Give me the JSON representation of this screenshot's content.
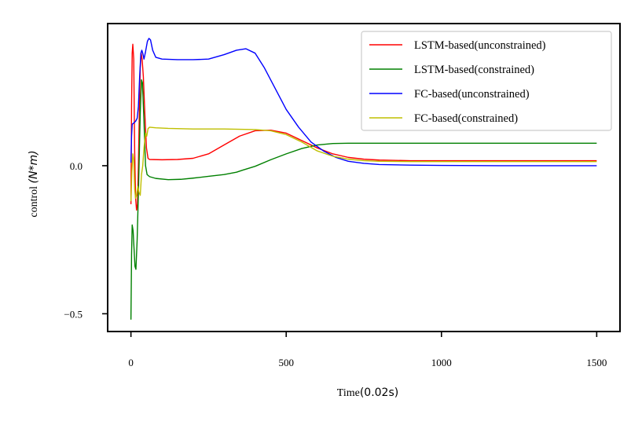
{
  "chart_data": {
    "type": "line",
    "xlabel_text": "Time",
    "xlabel_unit": "(0.02s)",
    "ylabel_text": "control ",
    "ylabel_unit": "(N*m)",
    "xlim": [
      -75,
      1575
    ],
    "ylim": [
      -0.56,
      0.48
    ],
    "xticks": [
      0,
      500,
      1000,
      1500
    ],
    "xtick_labels": [
      "0",
      "500",
      "1000",
      "1500"
    ],
    "yticks": [
      0.0,
      -0.5
    ],
    "ytick_labels": [
      "0.0",
      "−0.5"
    ],
    "grid": false,
    "legend_position": "top-right",
    "series": [
      {
        "name": "LSTM-based(unconstrained)",
        "color": "#ff0000",
        "points": [
          [
            0,
            -0.13
          ],
          [
            2,
            0.2
          ],
          [
            4,
            0.38
          ],
          [
            6,
            0.41
          ],
          [
            9,
            0.36
          ],
          [
            12,
            0.05
          ],
          [
            15,
            -0.11
          ],
          [
            18,
            -0.15
          ],
          [
            21,
            -0.13
          ],
          [
            24,
            0.0
          ],
          [
            27,
            0.18
          ],
          [
            30,
            0.33
          ],
          [
            33,
            0.38
          ],
          [
            36,
            0.36
          ],
          [
            40,
            0.3
          ],
          [
            45,
            0.17
          ],
          [
            50,
            0.06
          ],
          [
            55,
            0.025
          ],
          [
            60,
            0.021
          ],
          [
            100,
            0.02
          ],
          [
            150,
            0.021
          ],
          [
            200,
            0.025
          ],
          [
            250,
            0.04
          ],
          [
            300,
            0.07
          ],
          [
            350,
            0.1
          ],
          [
            400,
            0.118
          ],
          [
            450,
            0.12
          ],
          [
            500,
            0.11
          ],
          [
            550,
            0.085
          ],
          [
            600,
            0.06
          ],
          [
            650,
            0.04
          ],
          [
            700,
            0.028
          ],
          [
            750,
            0.022
          ],
          [
            800,
            0.019
          ],
          [
            900,
            0.017
          ],
          [
            1000,
            0.017
          ],
          [
            1200,
            0.017
          ],
          [
            1500,
            0.017
          ]
        ]
      },
      {
        "name": "LSTM-based(constrained)",
        "color": "#008000",
        "points": [
          [
            0,
            -0.52
          ],
          [
            2,
            -0.3
          ],
          [
            4,
            -0.2
          ],
          [
            7,
            -0.22
          ],
          [
            10,
            -0.28
          ],
          [
            13,
            -0.34
          ],
          [
            16,
            -0.35
          ],
          [
            20,
            -0.25
          ],
          [
            25,
            -0.05
          ],
          [
            30,
            0.18
          ],
          [
            34,
            0.29
          ],
          [
            37,
            0.28
          ],
          [
            42,
            0.15
          ],
          [
            47,
            0.0
          ],
          [
            52,
            -0.03
          ],
          [
            60,
            -0.037
          ],
          [
            80,
            -0.043
          ],
          [
            120,
            -0.047
          ],
          [
            160,
            -0.046
          ],
          [
            200,
            -0.042
          ],
          [
            250,
            -0.036
          ],
          [
            300,
            -0.03
          ],
          [
            340,
            -0.022
          ],
          [
            360,
            -0.015
          ],
          [
            400,
            -0.002
          ],
          [
            450,
            0.02
          ],
          [
            500,
            0.04
          ],
          [
            550,
            0.058
          ],
          [
            600,
            0.07
          ],
          [
            650,
            0.075
          ],
          [
            700,
            0.076
          ],
          [
            800,
            0.076
          ],
          [
            1000,
            0.076
          ],
          [
            1200,
            0.076
          ],
          [
            1500,
            0.076
          ]
        ]
      },
      {
        "name": "FC-based(unconstrained)",
        "color": "#0000ff",
        "points": [
          [
            0,
            0.01
          ],
          [
            2,
            0.1
          ],
          [
            4,
            0.14
          ],
          [
            10,
            0.145
          ],
          [
            15,
            0.15
          ],
          [
            20,
            0.16
          ],
          [
            24,
            0.2
          ],
          [
            28,
            0.3
          ],
          [
            32,
            0.38
          ],
          [
            35,
            0.39
          ],
          [
            38,
            0.38
          ],
          [
            42,
            0.36
          ],
          [
            47,
            0.385
          ],
          [
            53,
            0.42
          ],
          [
            58,
            0.43
          ],
          [
            63,
            0.425
          ],
          [
            70,
            0.39
          ],
          [
            80,
            0.366
          ],
          [
            100,
            0.36
          ],
          [
            150,
            0.358
          ],
          [
            200,
            0.358
          ],
          [
            250,
            0.36
          ],
          [
            300,
            0.375
          ],
          [
            340,
            0.39
          ],
          [
            370,
            0.395
          ],
          [
            400,
            0.38
          ],
          [
            430,
            0.33
          ],
          [
            460,
            0.27
          ],
          [
            500,
            0.19
          ],
          [
            540,
            0.13
          ],
          [
            580,
            0.08
          ],
          [
            620,
            0.05
          ],
          [
            660,
            0.028
          ],
          [
            700,
            0.015
          ],
          [
            750,
            0.008
          ],
          [
            800,
            0.004
          ],
          [
            900,
            0.002
          ],
          [
            1000,
            0.001
          ],
          [
            1200,
            0.0
          ],
          [
            1500,
            0.0
          ]
        ]
      },
      {
        "name": "FC-based(constrained)",
        "color": "#bfbf00",
        "points": [
          [
            0,
            -0.12
          ],
          [
            3,
            -0.02
          ],
          [
            6,
            0.04
          ],
          [
            9,
            0.02
          ],
          [
            12,
            -0.08
          ],
          [
            15,
            -0.11
          ],
          [
            18,
            -0.1
          ],
          [
            22,
            -0.07
          ],
          [
            26,
            -0.09
          ],
          [
            30,
            -0.1
          ],
          [
            34,
            -0.03
          ],
          [
            38,
            0.0
          ],
          [
            42,
            0.06
          ],
          [
            47,
            0.11
          ],
          [
            51,
            0.1
          ],
          [
            55,
            0.125
          ],
          [
            60,
            0.13
          ],
          [
            80,
            0.128
          ],
          [
            120,
            0.126
          ],
          [
            200,
            0.124
          ],
          [
            300,
            0.124
          ],
          [
            400,
            0.122
          ],
          [
            450,
            0.118
          ],
          [
            500,
            0.105
          ],
          [
            550,
            0.08
          ],
          [
            600,
            0.05
          ],
          [
            650,
            0.032
          ],
          [
            700,
            0.022
          ],
          [
            750,
            0.017
          ],
          [
            800,
            0.015
          ],
          [
            900,
            0.014
          ],
          [
            1000,
            0.014
          ],
          [
            1200,
            0.014
          ],
          [
            1500,
            0.014
          ]
        ]
      }
    ]
  }
}
